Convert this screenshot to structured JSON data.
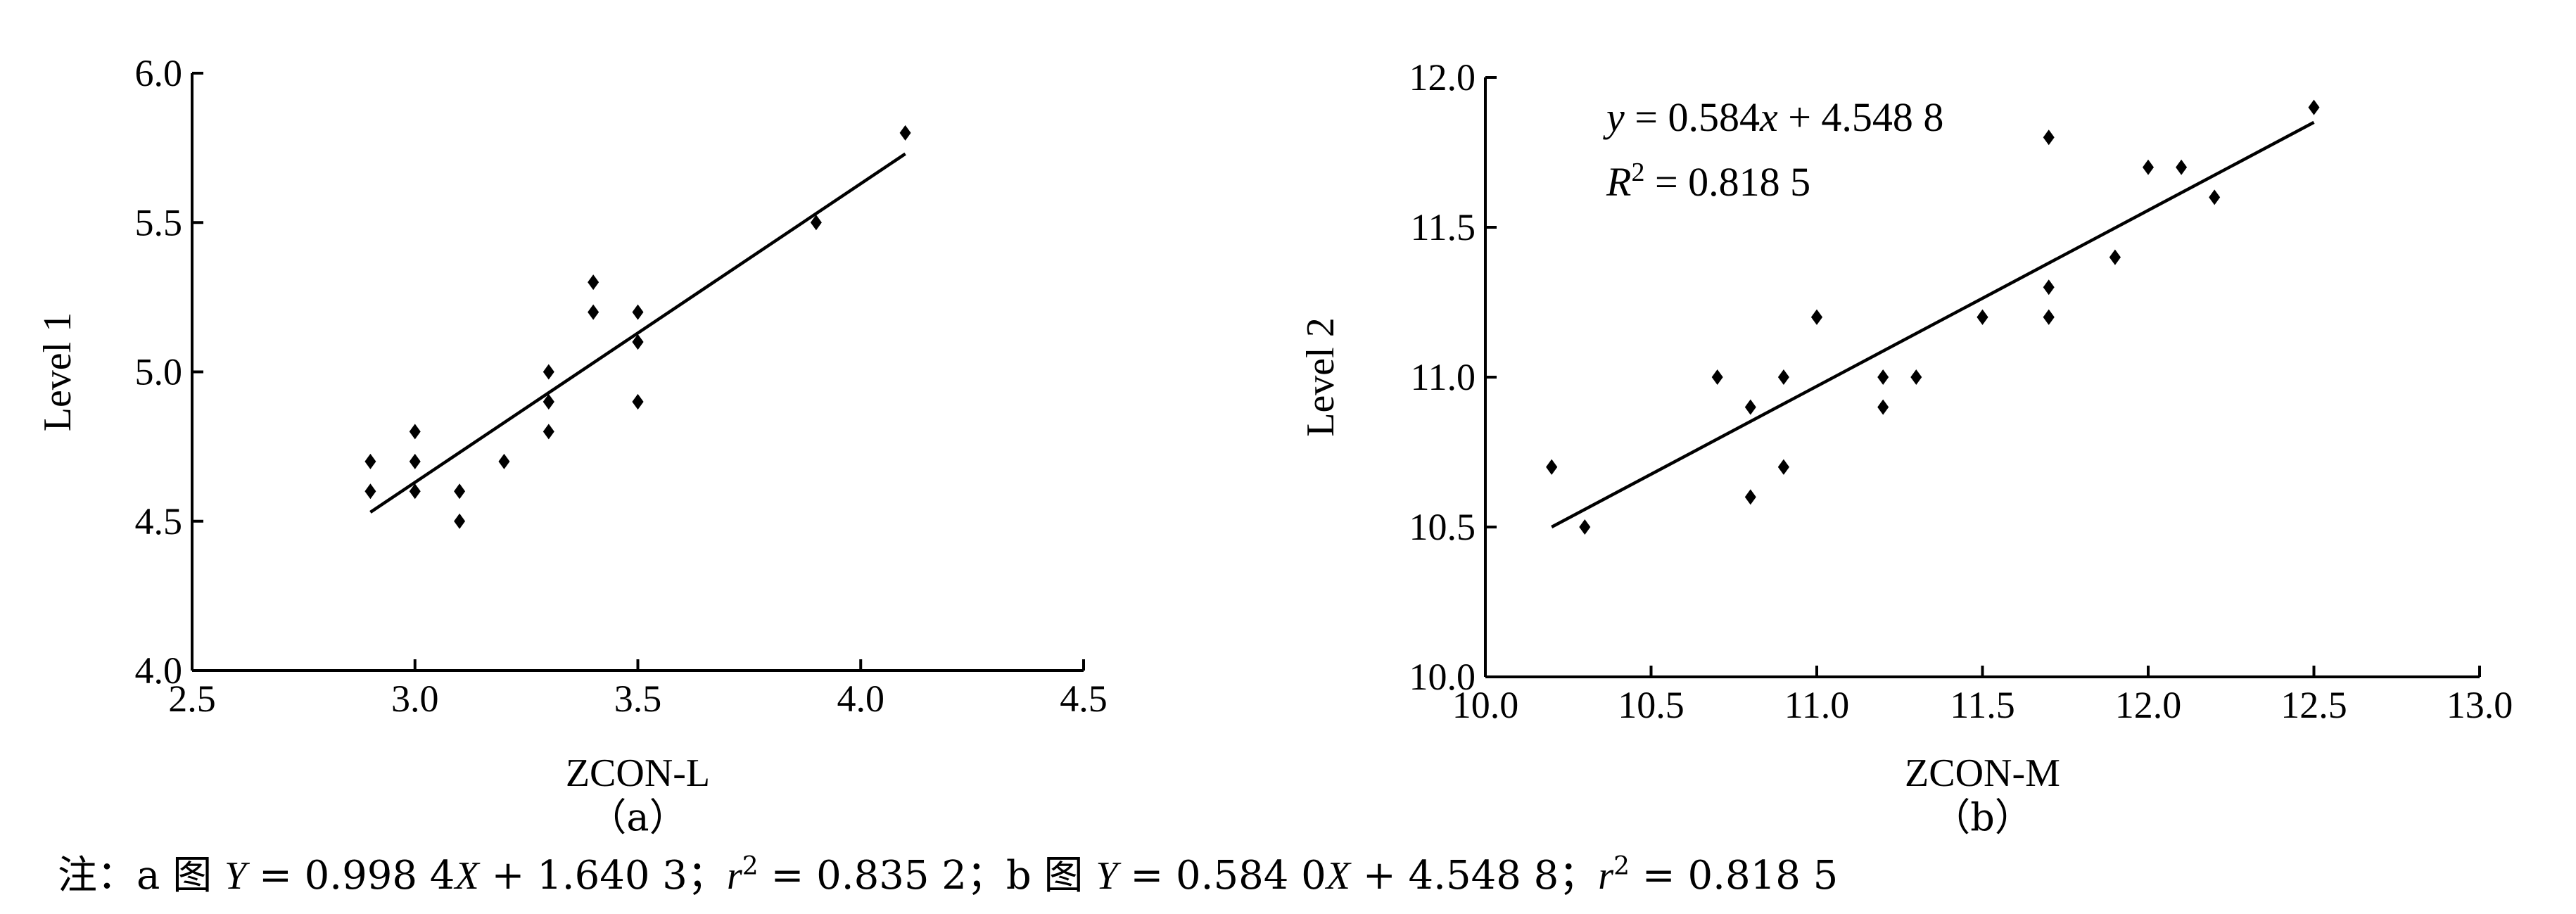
{
  "chart_data": [
    {
      "type": "scatter",
      "panel_label": "（a）",
      "xlabel": "ZCON-L",
      "ylabel": "Level 1",
      "xlim": [
        2.5,
        4.5
      ],
      "ylim": [
        4.0,
        6.0
      ],
      "xticks": [
        "2.5",
        "3.0",
        "3.5",
        "4.0",
        "4.5"
      ],
      "yticks": [
        "4.0",
        "4.5",
        "5.0",
        "5.5",
        "6.0"
      ],
      "grid": false,
      "points": [
        {
          "x": 2.9,
          "y": 4.7
        },
        {
          "x": 2.9,
          "y": 4.6
        },
        {
          "x": 3.0,
          "y": 4.8
        },
        {
          "x": 3.0,
          "y": 4.7
        },
        {
          "x": 3.0,
          "y": 4.6
        },
        {
          "x": 3.1,
          "y": 4.6
        },
        {
          "x": 3.1,
          "y": 4.5
        },
        {
          "x": 3.2,
          "y": 4.7
        },
        {
          "x": 3.3,
          "y": 5.0
        },
        {
          "x": 3.3,
          "y": 4.9
        },
        {
          "x": 3.3,
          "y": 4.9
        },
        {
          "x": 3.3,
          "y": 4.8
        },
        {
          "x": 3.4,
          "y": 5.3
        },
        {
          "x": 3.4,
          "y": 5.2
        },
        {
          "x": 3.5,
          "y": 5.2
        },
        {
          "x": 3.5,
          "y": 5.1
        },
        {
          "x": 3.5,
          "y": 5.1
        },
        {
          "x": 3.5,
          "y": 4.9
        },
        {
          "x": 3.5,
          "y": 4.9
        },
        {
          "x": 3.9,
          "y": 5.5
        },
        {
          "x": 4.1,
          "y": 5.8
        }
      ],
      "trendline": {
        "x": [
          2.9,
          4.1
        ],
        "y": [
          4.53,
          5.73
        ]
      },
      "equation_lines": []
    },
    {
      "type": "scatter",
      "panel_label": "（b）",
      "xlabel": "ZCON-M",
      "ylabel": "Level 2",
      "xlim": [
        10.0,
        13.0
      ],
      "ylim": [
        10.0,
        12.0
      ],
      "xticks": [
        "10.0",
        "10.5",
        "11.0",
        "11.5",
        "12.0",
        "12.5",
        "13.0"
      ],
      "yticks": [
        "10.0",
        "10.5",
        "11.0",
        "11.5",
        "12.0"
      ],
      "grid": false,
      "points": [
        {
          "x": 10.2,
          "y": 10.7
        },
        {
          "x": 10.2,
          "y": 10.7
        },
        {
          "x": 10.3,
          "y": 10.5
        },
        {
          "x": 10.7,
          "y": 11.0
        },
        {
          "x": 10.8,
          "y": 10.9
        },
        {
          "x": 10.8,
          "y": 10.6
        },
        {
          "x": 10.9,
          "y": 11.0
        },
        {
          "x": 10.9,
          "y": 10.7
        },
        {
          "x": 10.9,
          "y": 10.7
        },
        {
          "x": 11.0,
          "y": 11.2
        },
        {
          "x": 11.0,
          "y": 11.2
        },
        {
          "x": 11.2,
          "y": 11.0
        },
        {
          "x": 11.2,
          "y": 10.9
        },
        {
          "x": 11.3,
          "y": 11.0
        },
        {
          "x": 11.5,
          "y": 11.2
        },
        {
          "x": 11.5,
          "y": 11.2
        },
        {
          "x": 11.7,
          "y": 11.8
        },
        {
          "x": 11.7,
          "y": 11.3
        },
        {
          "x": 11.7,
          "y": 11.2
        },
        {
          "x": 11.7,
          "y": 11.2
        },
        {
          "x": 11.9,
          "y": 11.4
        },
        {
          "x": 11.9,
          "y": 11.4
        },
        {
          "x": 12.0,
          "y": 11.7
        },
        {
          "x": 12.1,
          "y": 11.7
        },
        {
          "x": 12.2,
          "y": 11.6
        },
        {
          "x": 12.5,
          "y": 11.9
        }
      ],
      "trendline": {
        "x": [
          10.2,
          12.5
        ],
        "y": [
          10.5,
          11.85
        ]
      },
      "equation_lines": [
        [
          {
            "t": "y",
            "it": true
          },
          {
            "t": " = 0.584"
          },
          {
            "t": "x",
            "it": true
          },
          {
            "t": " + 4.548 8"
          }
        ],
        [
          {
            "t": "R",
            "it": true
          },
          {
            "t": "2",
            "sup": true
          },
          {
            "t": " = 0.818 5"
          }
        ]
      ]
    }
  ],
  "note": [
    {
      "t": "注：a 图 "
    },
    {
      "t": "Y",
      "it": true
    },
    {
      "t": " = 0.998 4"
    },
    {
      "t": "X",
      "it": true
    },
    {
      "t": " + 1.640 3；"
    },
    {
      "t": "r",
      "it": true
    },
    {
      "t": "2",
      "sup": true
    },
    {
      "t": " = 0.835 2；b 图 "
    },
    {
      "t": "Y",
      "it": true
    },
    {
      "t": " = 0.584 0"
    },
    {
      "t": "X",
      "it": true
    },
    {
      "t": " + 4.548 8；"
    },
    {
      "t": "r",
      "it": true
    },
    {
      "t": "2",
      "sup": true
    },
    {
      "t": " = 0.818 5"
    }
  ]
}
